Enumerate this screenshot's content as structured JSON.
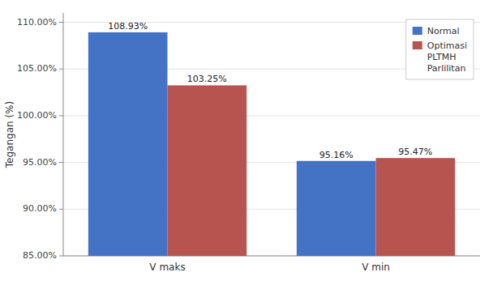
{
  "chart_data": {
    "type": "bar",
    "categories": [
      "V maks",
      "V min"
    ],
    "series": [
      {
        "name": "Normal",
        "color": "#4472C4",
        "values": [
          1.0893,
          0.9516
        ],
        "value_labels": [
          "108.93%",
          "95.16%"
        ]
      },
      {
        "name": "Optimasi\nPLTMH\nParlilitan",
        "color": "#B85450",
        "values": [
          1.0325,
          0.9547
        ],
        "value_labels": [
          "103.25%",
          "95.47%"
        ]
      }
    ],
    "y_label": "Tegangan (%)",
    "ylim": [
      0.85,
      1.11
    ],
    "yticks": [
      {
        "value": 0.85,
        "label": "85.00%"
      },
      {
        "value": 0.9,
        "label": "90.00%"
      },
      {
        "value": 0.95,
        "label": "95.00%"
      },
      {
        "value": 1.0,
        "label": "100.00%"
      },
      {
        "value": 1.05,
        "label": "105.00%"
      },
      {
        "value": 1.1,
        "label": "110.00%"
      }
    ],
    "grid": true,
    "legend": "upper right",
    "data_labels": true
  }
}
